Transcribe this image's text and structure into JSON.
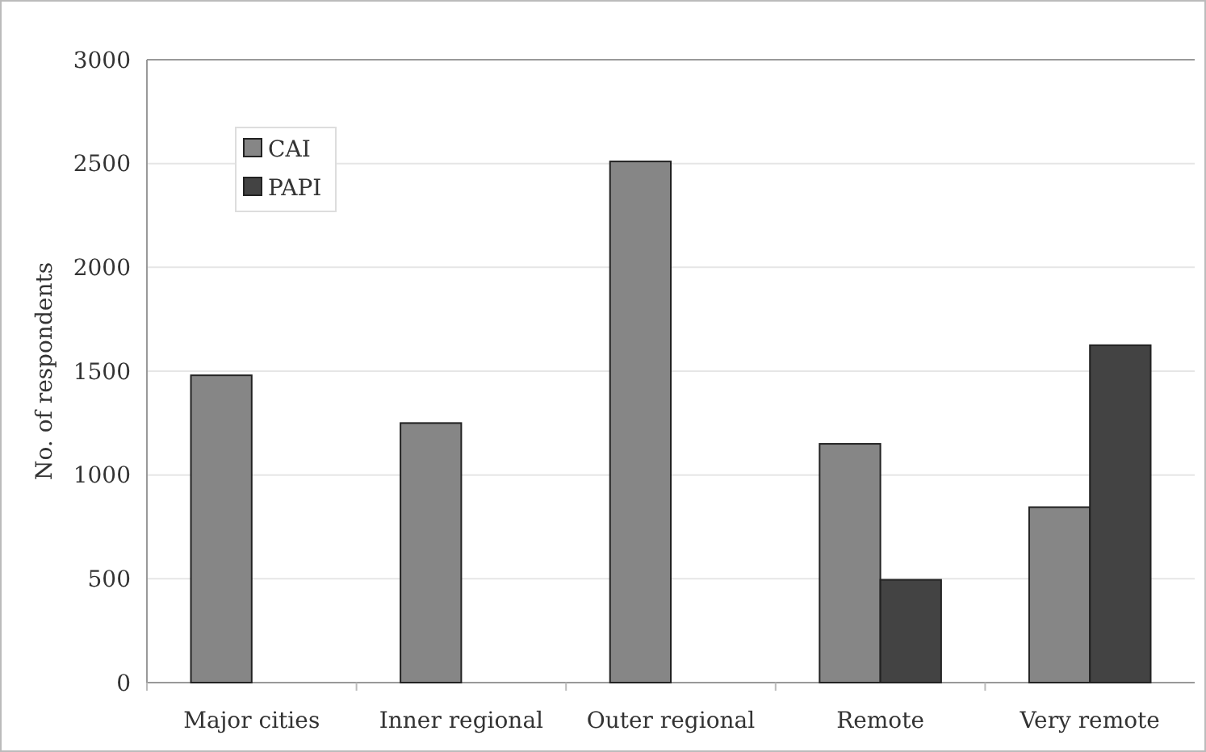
{
  "chart_data": {
    "type": "bar",
    "ylabel": "No. of respondents",
    "categories": [
      "Major cities",
      "Inner regional",
      "Outer regional",
      "Remote",
      "Very remote"
    ],
    "series": [
      {
        "name": "CAI",
        "color": "#868686",
        "values": [
          1480,
          1250,
          2510,
          1150,
          845
        ]
      },
      {
        "name": "PAPI",
        "color": "#434343",
        "values": [
          null,
          null,
          null,
          495,
          1625
        ]
      }
    ],
    "ylim": [
      0,
      3000
    ],
    "yticks": [
      0,
      500,
      1000,
      1500,
      2000,
      2500,
      3000
    ],
    "grid": "y",
    "legend": "top left"
  }
}
